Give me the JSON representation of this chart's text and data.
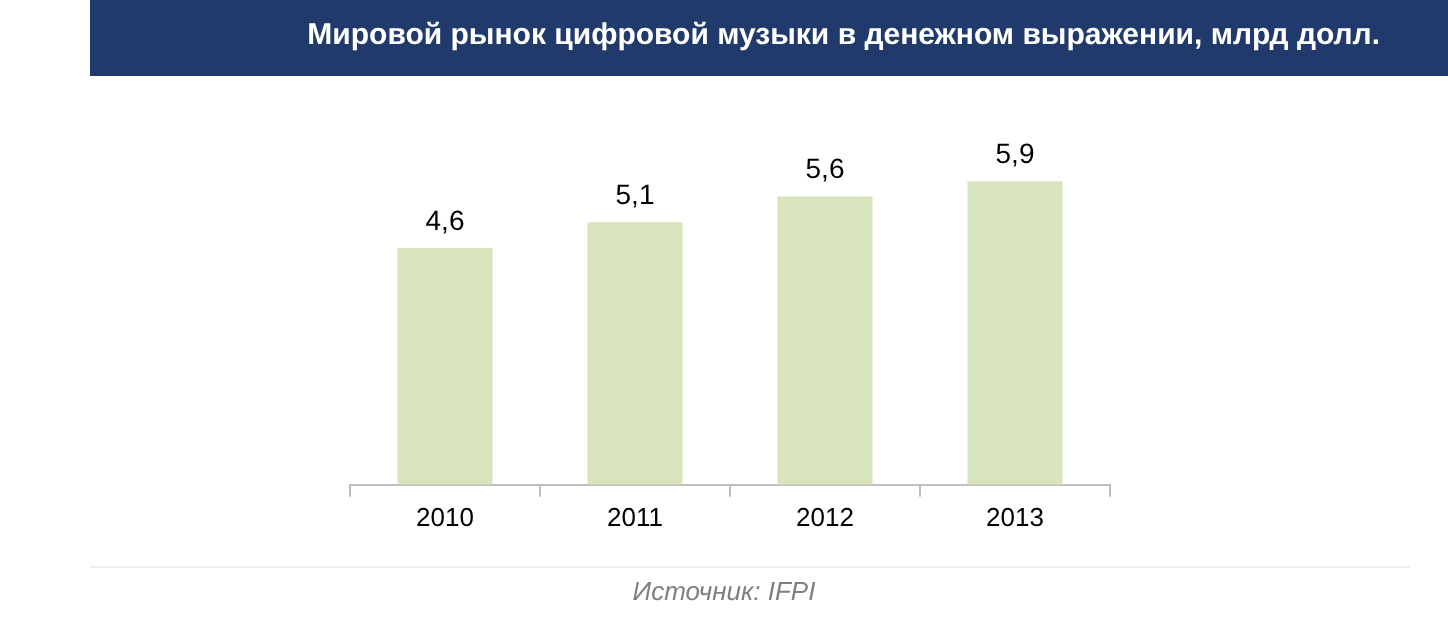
{
  "chart_data": {
    "type": "bar",
    "title": "Мировой рынок цифровой музыки в денежном выражении, млрд долл.",
    "categories": [
      "2010",
      "2011",
      "2012",
      "2013"
    ],
    "values": [
      4.6,
      5.1,
      5.6,
      5.9
    ],
    "value_labels": [
      "4,6",
      "5,1",
      "5,6",
      "5,9"
    ],
    "color": "#d7e4bd",
    "grid": false,
    "legend": false,
    "annotations": [
      "Источник: IFPI"
    ]
  }
}
